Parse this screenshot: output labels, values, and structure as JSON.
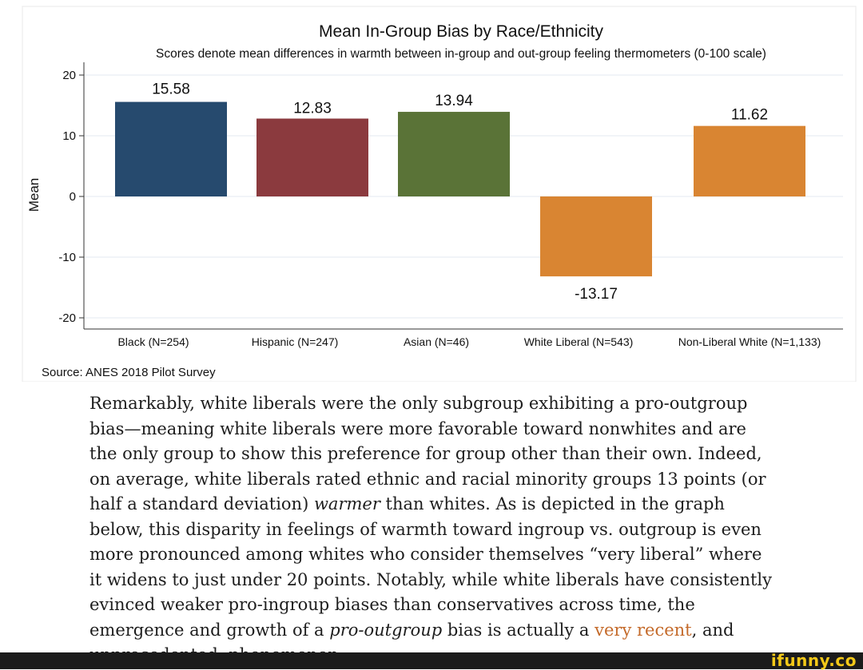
{
  "chart_data": {
    "type": "bar",
    "title": "Mean In-Group Bias by Race/Ethnicity",
    "subtitle": "Scores denote mean differences in warmth between in-group and out-group feeling thermometers (0-100 scale)",
    "ylabel": "Mean",
    "xlabel": "",
    "ylim": [
      -20,
      20
    ],
    "yticks": [
      "20",
      "10",
      "0",
      "-10",
      "-20"
    ],
    "categories": [
      "Black (N=254)",
      "Hispanic (N=247)",
      "Asian (N=46)",
      "White Liberal (N=543)",
      "Non-Liberal White (N=1,133)"
    ],
    "values": [
      15.58,
      12.83,
      13.94,
      -13.17,
      11.62
    ],
    "value_labels": [
      "15.58",
      "12.83",
      "13.94",
      "-13.17",
      "11.62"
    ],
    "colors": [
      "#264a6e",
      "#8b3a3e",
      "#5a7337",
      "#d98532",
      "#d98532"
    ],
    "grid": true,
    "source": "Source: ANES 2018 Pilot Survey"
  },
  "caption": {
    "p1": "Remarkably, white liberals were the only subgroup exhibiting a pro-outgroup bias—meaning white liberals were more favorable toward nonwhites and are the only group to show this preference for group other than their own. Indeed, on average, white liberals rated ethnic and racial minority groups 13 points (or half a standard deviation) ",
    "em1": "warmer",
    "p2": " than whites. As is depicted in the graph below, this disparity in feelings of warmth toward ingroup vs. outgroup is even more pronounced among whites who consider themselves “very liberal” where it widens to just under 20 points. Notably, while white liberals have consistently evinced weaker pro-ingroup biases than conservatives across time, the emergence and growth of a ",
    "em2": "pro-outgroup",
    "p3": " bias is actually a ",
    "link": "very recent",
    "p4": ", and unprecedented, phenomenon."
  },
  "watermark": "ifunny.co"
}
